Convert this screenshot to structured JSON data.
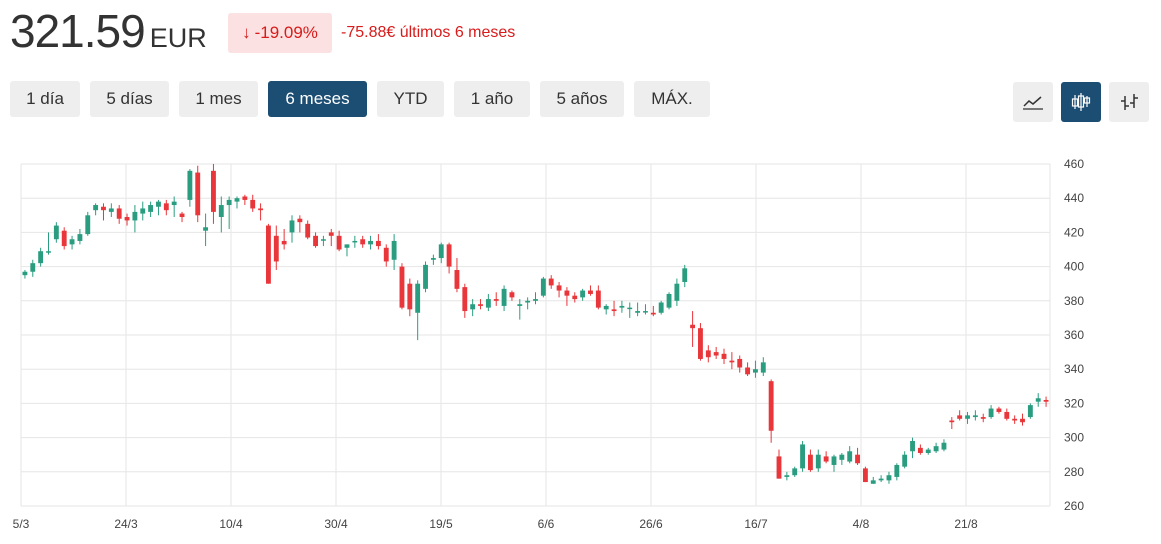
{
  "header": {
    "price": "321.59",
    "currency": "EUR",
    "change_pct": "-19.09%",
    "change_arrow": "↓",
    "change_text": "-75.88€ últimos 6 meses"
  },
  "periods": [
    {
      "label": "1 día",
      "active": false
    },
    {
      "label": "5 días",
      "active": false
    },
    {
      "label": "1 mes",
      "active": false
    },
    {
      "label": "6 meses",
      "active": true
    },
    {
      "label": "YTD",
      "active": false
    },
    {
      "label": "1 año",
      "active": false
    },
    {
      "label": "5 años",
      "active": false
    },
    {
      "label": "MÁX.",
      "active": false
    }
  ],
  "chart_types": [
    {
      "icon": "line-chart-icon",
      "active": false
    },
    {
      "icon": "candlestick-chart-icon",
      "active": true
    },
    {
      "icon": "ohlc-chart-icon",
      "active": false
    }
  ],
  "colors": {
    "up": "#2a9d80",
    "down": "#e8363a",
    "active": "#1c4d73",
    "grid": "#e6e6e6"
  },
  "chart_data": {
    "type": "candlestick",
    "ylim": [
      260,
      460
    ],
    "yticks": [
      260,
      280,
      300,
      320,
      340,
      360,
      380,
      400,
      420,
      440,
      460
    ],
    "xticks": [
      "5/3",
      "24/3",
      "10/4",
      "30/4",
      "19/5",
      "6/6",
      "26/6",
      "16/7",
      "4/8",
      "21/8"
    ],
    "grid": true,
    "candles": [
      [
        395,
        398,
        393,
        397
      ],
      [
        397,
        404,
        394,
        402
      ],
      [
        402,
        411,
        400,
        409
      ],
      [
        409,
        420,
        407,
        409
      ],
      [
        416,
        426,
        414,
        424
      ],
      [
        421,
        423,
        410,
        412
      ],
      [
        413,
        418,
        410,
        416
      ],
      [
        415,
        422,
        413,
        419
      ],
      [
        419,
        432,
        418,
        430
      ],
      [
        433,
        437,
        430,
        436
      ],
      [
        435,
        437,
        427,
        433
      ],
      [
        432,
        437,
        429,
        434
      ],
      [
        434,
        436,
        425,
        428
      ],
      [
        429,
        431,
        424,
        427
      ],
      [
        427,
        436,
        420,
        432
      ],
      [
        431,
        438,
        427,
        434
      ],
      [
        432,
        438,
        429,
        436
      ],
      [
        435,
        439,
        430,
        438
      ],
      [
        437,
        439,
        430,
        433
      ],
      [
        436,
        441,
        429,
        438
      ],
      [
        431,
        432,
        426,
        429
      ],
      [
        439,
        457,
        435,
        456
      ],
      [
        455,
        459,
        426,
        430
      ],
      [
        421,
        431,
        412,
        423
      ],
      [
        456,
        460,
        425,
        432
      ],
      [
        429,
        441,
        420,
        436
      ],
      [
        436,
        441,
        422,
        439
      ],
      [
        438,
        441,
        434,
        440
      ],
      [
        441,
        442,
        436,
        439
      ],
      [
        439,
        442,
        432,
        434
      ],
      [
        434,
        437,
        427,
        433
      ],
      [
        424,
        425,
        390,
        390
      ],
      [
        418,
        424,
        398,
        403
      ],
      [
        415,
        422,
        410,
        413
      ],
      [
        420,
        430,
        414,
        427
      ],
      [
        428,
        430,
        420,
        426
      ],
      [
        425,
        427,
        416,
        417
      ],
      [
        418,
        420,
        411,
        412
      ],
      [
        416,
        418,
        412,
        416
      ],
      [
        420,
        422,
        412,
        418
      ],
      [
        418,
        421,
        409,
        410
      ],
      [
        411,
        413,
        406,
        413
      ],
      [
        415,
        418,
        411,
        415
      ],
      [
        416,
        418,
        411,
        413
      ],
      [
        413,
        418,
        410,
        415
      ],
      [
        415,
        419,
        410,
        412
      ],
      [
        411,
        413,
        400,
        403
      ],
      [
        404,
        419,
        398,
        415
      ],
      [
        400,
        402,
        375,
        376
      ],
      [
        390,
        393,
        371,
        375
      ],
      [
        373,
        392,
        357,
        390
      ],
      [
        387,
        403,
        385,
        401
      ],
      [
        404,
        407,
        401,
        405
      ],
      [
        405,
        414,
        402,
        413
      ],
      [
        413,
        414,
        396,
        400
      ],
      [
        398,
        405,
        385,
        387
      ],
      [
        388,
        390,
        370,
        374
      ],
      [
        375,
        381,
        371,
        378
      ],
      [
        378,
        381,
        375,
        377
      ],
      [
        376,
        384,
        374,
        381
      ],
      [
        381,
        385,
        377,
        380
      ],
      [
        377,
        389,
        374,
        387
      ],
      [
        385,
        386,
        380,
        382
      ],
      [
        377,
        381,
        369,
        378
      ],
      [
        379,
        382,
        375,
        380
      ],
      [
        380,
        385,
        378,
        381
      ],
      [
        383,
        394,
        382,
        393
      ],
      [
        393,
        395,
        387,
        389
      ],
      [
        389,
        391,
        382,
        386
      ],
      [
        386,
        388,
        377,
        383
      ],
      [
        383,
        385,
        379,
        381
      ],
      [
        382,
        387,
        380,
        386
      ],
      [
        386,
        389,
        383,
        384
      ],
      [
        386,
        389,
        375,
        376
      ],
      [
        375,
        378,
        372,
        377
      ],
      [
        375,
        380,
        371,
        374
      ],
      [
        376,
        380,
        373,
        377
      ],
      [
        376,
        379,
        370,
        376
      ],
      [
        373,
        379,
        371,
        374
      ],
      [
        374,
        378,
        372,
        374
      ],
      [
        373,
        377,
        371,
        372
      ],
      [
        373,
        380,
        372,
        379
      ],
      [
        376,
        385,
        375,
        384
      ],
      [
        380,
        393,
        377,
        390
      ],
      [
        391,
        401,
        388,
        399
      ],
      [
        366,
        374,
        353,
        364
      ],
      [
        364,
        367,
        345,
        346
      ],
      [
        351,
        354,
        344,
        347
      ],
      [
        350,
        353,
        346,
        348
      ],
      [
        349,
        352,
        343,
        346
      ],
      [
        345,
        350,
        340,
        344
      ],
      [
        346,
        348,
        338,
        341
      ],
      [
        341,
        344,
        336,
        337
      ],
      [
        338,
        345,
        335,
        340
      ],
      [
        338,
        347,
        336,
        344
      ],
      [
        333,
        334,
        297,
        304
      ],
      [
        289,
        293,
        276,
        276
      ],
      [
        277,
        280,
        275,
        278
      ],
      [
        278,
        283,
        277,
        282
      ],
      [
        282,
        298,
        280,
        296
      ],
      [
        290,
        293,
        280,
        281
      ],
      [
        282,
        293,
        280,
        290
      ],
      [
        289,
        292,
        285,
        286
      ],
      [
        284,
        290,
        280,
        289
      ],
      [
        287,
        291,
        284,
        290
      ],
      [
        286,
        295,
        285,
        292
      ],
      [
        290,
        294,
        284,
        285
      ],
      [
        282,
        283,
        274,
        274
      ],
      [
        273,
        277,
        273,
        275
      ],
      [
        275,
        278,
        274,
        276
      ],
      [
        275,
        280,
        273,
        278
      ],
      [
        277,
        285,
        275,
        284
      ],
      [
        283,
        292,
        282,
        290
      ],
      [
        292,
        300,
        288,
        298
      ],
      [
        294,
        296,
        290,
        291
      ],
      [
        291,
        294,
        290,
        293
      ],
      [
        292,
        297,
        291,
        295
      ],
      [
        293,
        299,
        292,
        297
      ],
      [
        310,
        312,
        305,
        309
      ],
      [
        313,
        316,
        310,
        311
      ],
      [
        311,
        315,
        308,
        313
      ],
      [
        312,
        316,
        310,
        313
      ],
      [
        312,
        314,
        309,
        311
      ],
      [
        312,
        319,
        311,
        317
      ],
      [
        317,
        318,
        314,
        315
      ],
      [
        315,
        317,
        310,
        311
      ],
      [
        311,
        313,
        308,
        310
      ],
      [
        311,
        314,
        307,
        309
      ],
      [
        312,
        320,
        311,
        319
      ],
      [
        321,
        326,
        318,
        323
      ],
      [
        322,
        324,
        318,
        321
      ]
    ]
  }
}
